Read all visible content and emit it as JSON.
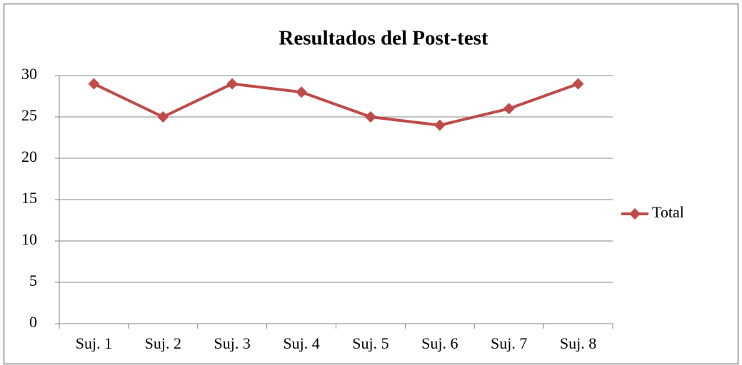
{
  "chart_data": {
    "type": "line",
    "title": "Resultados del Post-test",
    "categories": [
      "Suj. 1",
      "Suj. 2",
      "Suj. 3",
      "Suj. 4",
      "Suj. 5",
      "Suj. 6",
      "Suj. 7",
      "Suj. 8"
    ],
    "series": [
      {
        "name": "Total",
        "color": "#be4b48",
        "values": [
          29,
          25,
          29,
          28,
          25,
          24,
          26,
          29
        ]
      }
    ],
    "ylim": [
      0,
      30
    ],
    "yticks": [
      0,
      5,
      10,
      15,
      20,
      25,
      30
    ],
    "grid": true,
    "legend": "right"
  }
}
